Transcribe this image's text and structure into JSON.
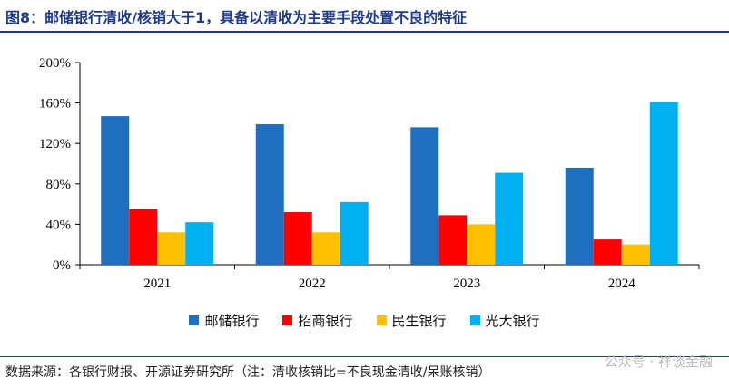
{
  "title": "图8：邮储银行清收/核销大于1，具备以清收为主要手段处置不良的特征",
  "source": "数据来源：各银行财报、开源证券研究所（注：清收核销比=不良现金清收/呆账核销）",
  "watermark": "公众号 · 祥谈金融",
  "chart_data": {
    "type": "bar",
    "categories": [
      "2021",
      "2022",
      "2023",
      "2024"
    ],
    "ylim": [
      0,
      200
    ],
    "yticks": [
      "0%",
      "40%",
      "80%",
      "120%",
      "160%",
      "200%"
    ],
    "ytick_values": [
      0,
      40,
      80,
      120,
      160,
      200
    ],
    "xlabel": "",
    "ylabel": "",
    "grid": false,
    "legend_position": "bottom",
    "series": [
      {
        "name": "邮储银行",
        "color": "#1f6fc0",
        "values": [
          147,
          139,
          136,
          96
        ]
      },
      {
        "name": "招商银行",
        "color": "#ff0000",
        "values": [
          55,
          52,
          49,
          25
        ]
      },
      {
        "name": "民生银行",
        "color": "#ffc000",
        "values": [
          32,
          32,
          40,
          20
        ]
      },
      {
        "name": "光大银行",
        "color": "#00b0f0",
        "values": [
          42,
          62,
          91,
          161
        ]
      }
    ]
  }
}
